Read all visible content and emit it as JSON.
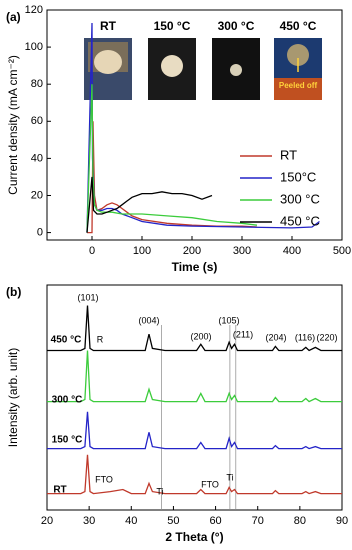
{
  "chart_data": [
    {
      "type": "line",
      "panel_label": "(a)",
      "x_label": "Time (s)",
      "y_label": "Current density (mA cm⁻²)",
      "xlim": [
        -90,
        500
      ],
      "xticks": [
        0,
        100,
        200,
        300,
        400,
        500
      ],
      "ylim": [
        -4,
        120
      ],
      "yticks": [
        0,
        20,
        40,
        60,
        80,
        100,
        120
      ],
      "legend": "lower right",
      "inset_labels": [
        "RT",
        "150 °C",
        "300 °C",
        "450 °C",
        "Peeled off"
      ],
      "series": [
        {
          "name": "RT",
          "color": "#c0392b",
          "x": [
            -10,
            0,
            2,
            5,
            10,
            20,
            30,
            40,
            50,
            60,
            70,
            80,
            100,
            150,
            200,
            250,
            300,
            330
          ],
          "values": [
            0,
            0,
            60,
            20,
            12,
            13,
            15,
            16,
            15,
            13,
            11,
            9,
            7,
            5,
            4,
            3.5,
            3.5,
            3
          ]
        },
        {
          "name": "150°C",
          "color": "#2424c8",
          "x": [
            -10,
            0,
            1,
            5,
            10,
            20,
            30,
            40,
            50,
            60,
            80,
            100,
            150,
            200,
            300,
            400,
            440,
            455
          ],
          "values": [
            0,
            113,
            40,
            15,
            12,
            12,
            13,
            13,
            12,
            10,
            8,
            6,
            4,
            3.5,
            3,
            2.5,
            3,
            6
          ]
        },
        {
          "name": "300 °C",
          "color": "#3ccc3c",
          "x": [
            -10,
            0,
            2,
            5,
            10,
            20,
            40,
            60,
            80,
            100,
            150,
            200,
            250,
            300,
            330
          ],
          "values": [
            0,
            80,
            30,
            15,
            12,
            11,
            11,
            10,
            10,
            10,
            9,
            8,
            6,
            5,
            4
          ]
        },
        {
          "name": "450 °C",
          "color": "#000000",
          "x": [
            -10,
            0,
            3,
            10,
            20,
            30,
            40,
            50,
            60,
            70,
            80,
            100,
            120,
            140,
            160,
            180,
            200,
            220,
            240
          ],
          "values": [
            0,
            30,
            12,
            10,
            10,
            11,
            12,
            13,
            15,
            17,
            19,
            21,
            21,
            22,
            21,
            21,
            20,
            18,
            20
          ]
        }
      ]
    },
    {
      "type": "line",
      "panel_label": "(b)",
      "x_label": "2 Theta (°)",
      "y_label": "Intensity (arb. unit)",
      "xlim": [
        20,
        90
      ],
      "xticks": [
        20,
        30,
        40,
        50,
        60,
        70,
        80,
        90
      ],
      "ylim": [
        0,
        110
      ],
      "reference_lines": [
        47.2,
        63.4,
        64.8
      ],
      "annotations": [
        "(101)",
        "(004)",
        "(200)",
        "(105)",
        "(211)",
        "(204)",
        "(116)",
        "(220)",
        "R",
        "FTO",
        "FTO",
        "Ti",
        "Ti"
      ],
      "x": [
        20,
        25,
        28,
        29,
        29.6,
        30.2,
        31,
        35,
        38,
        40,
        43.3,
        44.2,
        45,
        48,
        55.5,
        56.5,
        57.5,
        62.5,
        63.2,
        63.8,
        64.5,
        65.2,
        70,
        73.5,
        74.2,
        75,
        80.5,
        81.4,
        82.2,
        83.7,
        85,
        90
      ],
      "series": [
        {
          "name": "450 °C",
          "color": "#000000",
          "values": [
            78,
            78,
            78,
            79,
            100,
            79,
            78,
            78,
            78,
            78,
            78,
            86,
            79,
            78,
            78,
            81,
            78,
            78,
            82,
            79,
            81,
            78,
            78,
            78,
            80,
            78,
            78,
            79.5,
            78,
            79.5,
            78,
            78
          ]
        },
        {
          "name": "300 °C",
          "color": "#3ccc3c",
          "values": [
            53,
            53,
            53,
            54,
            78,
            54,
            53,
            53,
            53,
            53,
            53,
            59,
            54,
            53,
            53,
            57,
            53,
            53,
            57,
            54,
            56,
            53,
            53,
            53,
            55,
            53,
            53,
            54.5,
            53,
            54.5,
            53,
            53
          ]
        },
        {
          "name": "150 °C",
          "color": "#2424c8",
          "values": [
            30,
            30,
            30,
            31,
            48,
            31,
            30,
            30,
            30,
            30,
            30,
            38,
            31,
            30,
            30,
            33,
            30,
            30,
            35,
            31,
            33,
            30,
            30,
            30,
            31.5,
            30,
            30,
            31,
            30,
            31,
            30,
            30
          ]
        },
        {
          "name": "RT",
          "color": "#c0392b",
          "values": [
            8,
            8,
            8,
            9,
            27,
            9,
            8,
            9,
            10,
            8,
            8,
            13,
            9,
            8,
            8,
            10,
            8,
            8,
            11,
            9,
            10,
            8,
            8,
            8,
            9.5,
            8,
            8,
            9,
            8,
            9,
            8,
            8
          ]
        }
      ]
    }
  ]
}
